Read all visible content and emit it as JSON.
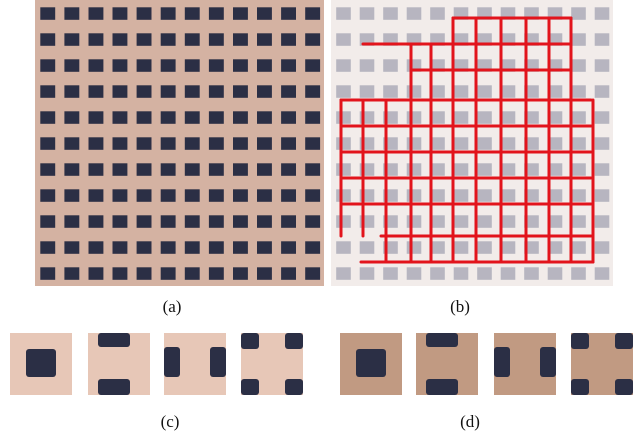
{
  "captions": {
    "a": "(a)",
    "b": "(b)",
    "c": "(c)",
    "d": "(d)"
  },
  "colors": {
    "facade": "#d4b2a2",
    "facade_light": "#f2ecea",
    "window_dark": "#2b2f45",
    "window_faded": "#b7b5c0",
    "grid_line": "#e2141c",
    "patch_c_bg": "#e7c7b7",
    "patch_d_bg": "#c19a82"
  }
}
